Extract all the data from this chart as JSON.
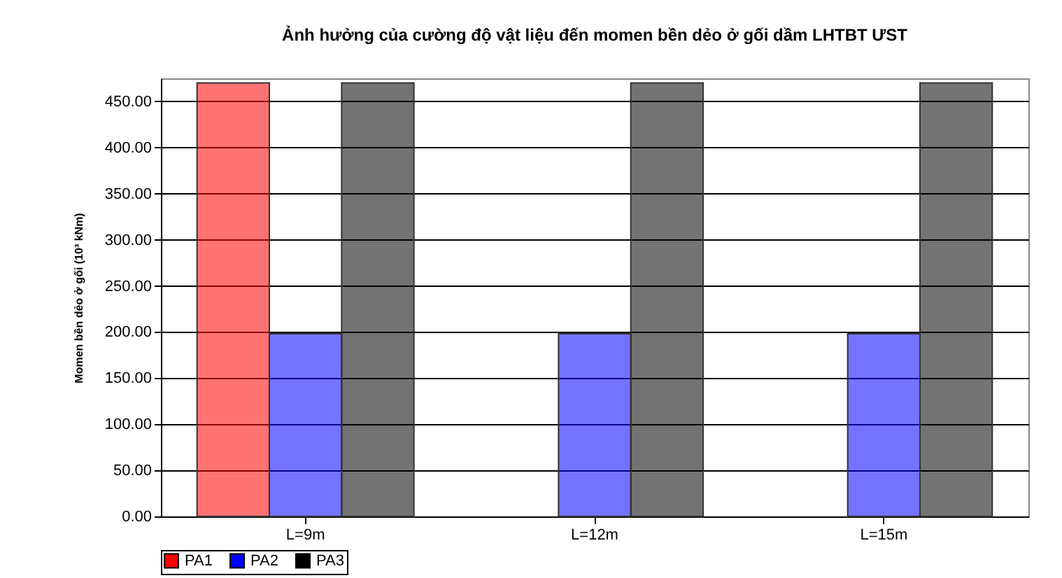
{
  "chart_data": {
    "type": "bar",
    "title": "Ảnh hưởng của cường độ vật liệu đến momen bền dẻo ở gối dầm LHTBT ƯST",
    "ylabel": "Momen bền dẻo ở gối (10³ kNm)",
    "categories": [
      "L=9m",
      "L=12m",
      "L=15m"
    ],
    "series": [
      {
        "name": "PA1",
        "color": "#ff0000",
        "values": [
          470,
          null,
          null
        ]
      },
      {
        "name": "PA2",
        "color": "#0000ff",
        "values": [
          198,
          198,
          198
        ]
      },
      {
        "name": "PA3",
        "color": "#000000",
        "values": [
          470,
          470,
          470
        ]
      }
    ],
    "ylim": [
      0,
      475
    ],
    "yticks": [
      {
        "value": 0,
        "label": "0.00"
      },
      {
        "value": 50,
        "label": "50.00"
      },
      {
        "value": 100,
        "label": "100.00"
      },
      {
        "value": 150,
        "label": "150.00"
      },
      {
        "value": 200,
        "label": "200.00"
      },
      {
        "value": 250,
        "label": "250.00"
      },
      {
        "value": 300,
        "label": "300.00"
      },
      {
        "value": 350,
        "label": "350.00"
      },
      {
        "value": 400,
        "label": "400.00"
      },
      {
        "value": 450,
        "label": "450.00"
      }
    ],
    "grid": "y",
    "legend": "bottom"
  }
}
